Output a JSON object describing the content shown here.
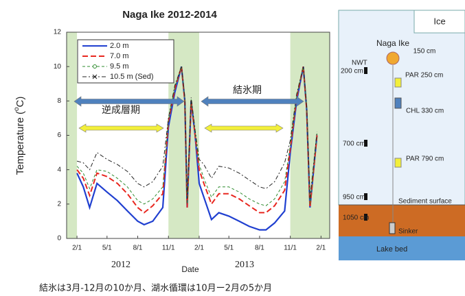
{
  "chart_data": {
    "type": "line",
    "title": "Naga Ike 2012-2014",
    "x_label": "Date",
    "y_label": [
      "Temperature (",
      "o",
      "C)"
    ],
    "year_labels": [
      "2012",
      "2013"
    ],
    "annotations": [
      "逆成層期",
      "結氷期"
    ],
    "caption": "結氷は3月-12月の10か月、湖水循環は10月ー2月の5か月",
    "shaded_periods": [
      [
        "2012-01-01",
        "2012-02-01"
      ],
      [
        "2012-11-01",
        "2013-02-01"
      ],
      [
        "2013-11-01",
        "2014-02-27"
      ]
    ],
    "shade_color": "#d5e8c4",
    "xlim": [
      "2012-01-01",
      "2014-02-27"
    ],
    "xticks": [
      {
        "value": "2012-02-01",
        "label": "2/1"
      },
      {
        "value": "2012-05-01",
        "label": "5/1"
      },
      {
        "value": "2012-08-01",
        "label": "8/1"
      },
      {
        "value": "2012-11-01",
        "label": "11/1"
      },
      {
        "value": "2013-02-01",
        "label": "2/1"
      },
      {
        "value": "2013-05-01",
        "label": "5/1"
      },
      {
        "value": "2013-08-01",
        "label": "8/1"
      },
      {
        "value": "2013-11-01",
        "label": "11/1"
      },
      {
        "value": "2014-02-01",
        "label": "2/1"
      }
    ],
    "ylim": [
      0,
      12
    ],
    "yticks": [
      0,
      2,
      4,
      6,
      8,
      10,
      12
    ],
    "grid": false,
    "x": [
      "2012-02-01",
      "2012-02-20",
      "2012-03-10",
      "2012-04-01",
      "2012-05-01",
      "2012-06-01",
      "2012-07-01",
      "2012-08-01",
      "2012-08-20",
      "2012-09-15",
      "2012-10-15",
      "2012-11-01",
      "2012-11-20",
      "2012-12-10",
      "2012-12-20",
      "2012-12-27",
      "2013-01-08",
      "2013-01-20",
      "2013-02-01",
      "2013-02-15",
      "2013-03-10",
      "2013-04-01",
      "2013-05-01",
      "2013-06-01",
      "2013-07-01",
      "2013-08-01",
      "2013-08-20",
      "2013-09-15",
      "2013-10-15",
      "2013-11-01",
      "2013-11-20",
      "2013-12-10",
      "2013-12-20",
      "2013-12-30",
      "2014-01-20"
    ],
    "series": [
      {
        "name": "2.0 m",
        "color": "#1f3fd0",
        "style": "solid",
        "values": [
          3.8,
          3.0,
          1.8,
          3.2,
          2.7,
          2.2,
          1.6,
          1.0,
          0.8,
          1.0,
          1.8,
          6.5,
          8.5,
          10.0,
          8.0,
          1.8,
          8.0,
          6.0,
          3.2,
          2.4,
          1.1,
          1.5,
          1.3,
          1.0,
          0.7,
          0.5,
          0.5,
          0.9,
          1.6,
          5.0,
          8.0,
          10.0,
          7.5,
          1.8,
          6.0
        ]
      },
      {
        "name": "7.0 m",
        "color": "#e8261e",
        "style": "dashed",
        "values": [
          4.0,
          3.5,
          2.5,
          3.8,
          3.6,
          3.2,
          2.6,
          1.8,
          1.5,
          1.9,
          2.6,
          6.8,
          8.7,
          10.0,
          8.0,
          1.8,
          8.0,
          6.0,
          4.0,
          3.2,
          2.0,
          2.6,
          2.6,
          2.3,
          1.9,
          1.5,
          1.5,
          1.9,
          2.8,
          5.2,
          8.2,
          10.0,
          7.5,
          1.8,
          6.0
        ]
      },
      {
        "name": "9.5 m",
        "color": "#2e8b2e",
        "style": "dash-circle",
        "values": [
          4.2,
          3.8,
          2.9,
          4.0,
          3.9,
          3.5,
          3.0,
          2.2,
          2.0,
          2.3,
          3.0,
          6.9,
          8.8,
          10.0,
          8.1,
          2.0,
          8.1,
          6.1,
          4.3,
          3.5,
          2.4,
          3.0,
          3.0,
          2.7,
          2.3,
          2.0,
          1.9,
          2.3,
          3.3,
          5.4,
          8.3,
          10.0,
          7.6,
          2.0,
          6.1
        ]
      },
      {
        "name": "10.5 m (Sed)",
        "color": "#222222",
        "style": "dashdot-x",
        "values": [
          4.5,
          4.4,
          4.0,
          5.0,
          4.6,
          4.3,
          3.9,
          3.2,
          3.0,
          3.3,
          4.2,
          7.0,
          8.9,
          10.0,
          8.2,
          2.3,
          8.2,
          6.3,
          4.6,
          4.3,
          3.5,
          4.2,
          4.1,
          3.8,
          3.4,
          3.0,
          2.9,
          3.3,
          4.4,
          5.7,
          8.4,
          10.0,
          7.7,
          2.3,
          6.2
        ]
      }
    ]
  },
  "diagram": {
    "ice": "Ice",
    "lake_name": "Naga Ike",
    "top_depth": "150 cm",
    "nwt": "NWT",
    "nwt_depth": "200 cm",
    "par1": "PAR 250 cm",
    "chl": "CHL 330 cm",
    "d700": "700 cm",
    "par2": "PAR 790 cm",
    "d950": "950 cm",
    "sediment": "Sediment surface",
    "d1050": "1050 cm",
    "sinker": "Sinker",
    "lake_bed": "Lake bed"
  }
}
